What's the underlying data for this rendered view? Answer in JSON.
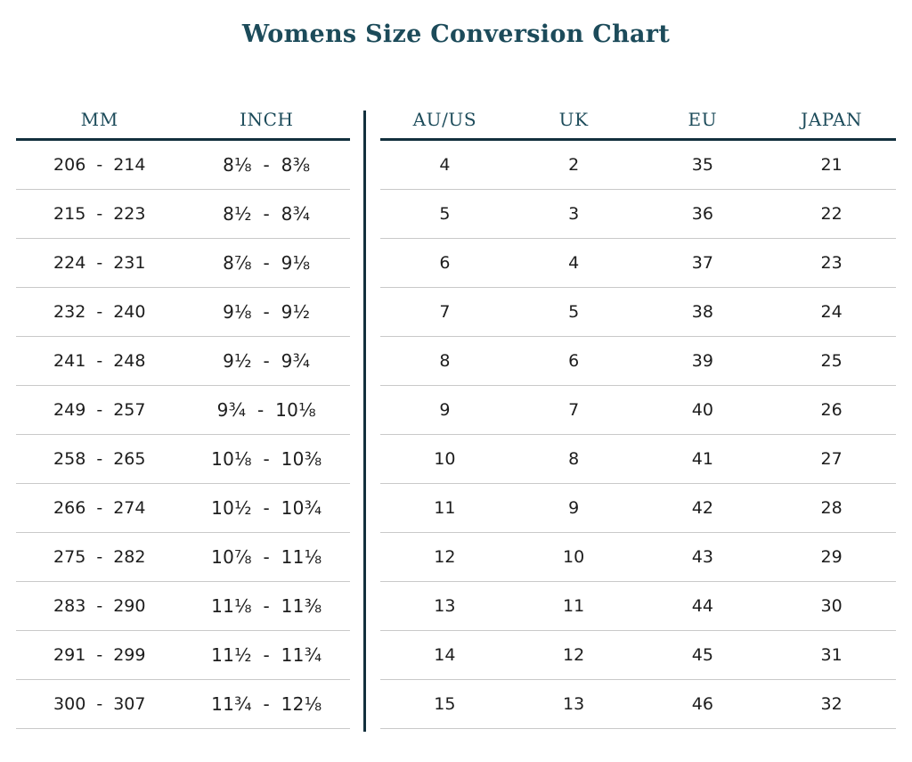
{
  "title": "Womens Size Conversion Chart",
  "chart_data": {
    "type": "table",
    "title": "Womens Size Conversion Chart",
    "left_headers": [
      "MM",
      "INCH"
    ],
    "right_headers": [
      "AU/US",
      "UK",
      "EU",
      "JAPAN"
    ],
    "columns": [
      "MM",
      "INCH",
      "AU/US",
      "UK",
      "EU",
      "JAPAN"
    ],
    "rows": [
      [
        "206 - 214",
        "8⅛ - 8⅜",
        "4",
        "2",
        "35",
        "21"
      ],
      [
        "215 - 223",
        "8½ - 8¾",
        "5",
        "3",
        "36",
        "22"
      ],
      [
        "224 - 231",
        "8⅞ - 9⅛",
        "6",
        "4",
        "37",
        "23"
      ],
      [
        "232 - 240",
        "9⅛ - 9½",
        "7",
        "5",
        "38",
        "24"
      ],
      [
        "241 - 248",
        "9½ - 9¾",
        "8",
        "6",
        "39",
        "25"
      ],
      [
        "249 - 257",
        "9¾ - 10⅛",
        "9",
        "7",
        "40",
        "26"
      ],
      [
        "258 - 265",
        "10⅛ - 10⅜",
        "10",
        "8",
        "41",
        "27"
      ],
      [
        "266 - 274",
        "10½ - 10¾",
        "11",
        "9",
        "42",
        "28"
      ],
      [
        "275 - 282",
        "10⅞ - 11⅛",
        "12",
        "10",
        "43",
        "29"
      ],
      [
        "283 - 290",
        "11⅛ - 11⅜",
        "13",
        "11",
        "44",
        "30"
      ],
      [
        "291 - 299",
        "11½ - 11¾",
        "14",
        "12",
        "45",
        "31"
      ],
      [
        "300 - 307",
        "11¾ - 12⅛",
        "15",
        "13",
        "46",
        "32"
      ]
    ],
    "layout": {
      "row_dividers": true,
      "header_rule": "thick-teal",
      "group_divider_between": [
        "INCH",
        "AU/US"
      ]
    }
  },
  "colors": {
    "heading_teal": "#1c4b5a",
    "rule_teal": "#12303d",
    "row_divider_gray": "#c9c9c9",
    "body_text": "#1d1d1d",
    "background": "#ffffff"
  }
}
